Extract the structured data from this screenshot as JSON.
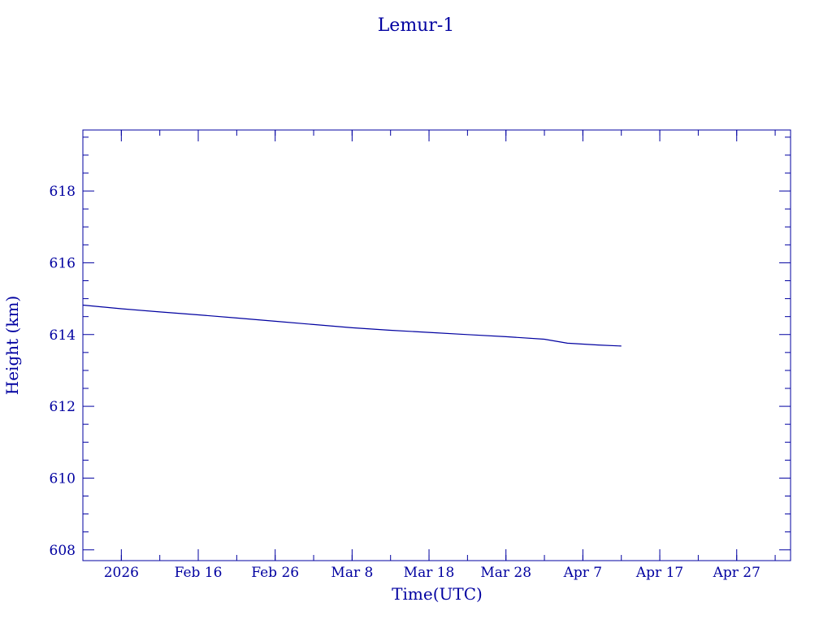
{
  "chart_data": {
    "type": "line",
    "title": "Lemur-1",
    "xlabel": "Time(UTC)",
    "ylabel": "Height (km)",
    "x_date_range": [
      "2026-02-01",
      "2026-05-04"
    ],
    "ylim": [
      607.7,
      619.7
    ],
    "grid": false,
    "color": "#0000a0",
    "x_ticks": [
      {
        "date": "2026-02-06",
        "label": "2026"
      },
      {
        "date": "2026-02-16",
        "label": "Feb 16"
      },
      {
        "date": "2026-02-26",
        "label": "Feb 26"
      },
      {
        "date": "2026-03-08",
        "label": "Mar  8"
      },
      {
        "date": "2026-03-18",
        "label": "Mar 18"
      },
      {
        "date": "2026-03-28",
        "label": "Mar 28"
      },
      {
        "date": "2026-04-07",
        "label": "Apr  7"
      },
      {
        "date": "2026-04-17",
        "label": "Apr 17"
      },
      {
        "date": "2026-04-27",
        "label": "Apr 27"
      }
    ],
    "y_ticks": [
      608,
      610,
      612,
      614,
      616,
      618
    ],
    "series": [
      {
        "x": [
          "2026-02-01",
          "2026-02-06",
          "2026-02-11",
          "2026-02-16",
          "2026-02-21",
          "2026-02-26",
          "2026-03-03",
          "2026-03-08",
          "2026-03-13",
          "2026-03-18",
          "2026-03-23",
          "2026-03-28",
          "2026-04-02",
          "2026-04-05",
          "2026-04-09",
          "2026-04-12"
        ],
        "y": [
          614.82,
          614.72,
          614.63,
          614.55,
          614.46,
          614.37,
          614.28,
          614.19,
          614.12,
          614.06,
          614.0,
          613.94,
          613.87,
          613.76,
          613.71,
          613.68
        ]
      }
    ]
  }
}
